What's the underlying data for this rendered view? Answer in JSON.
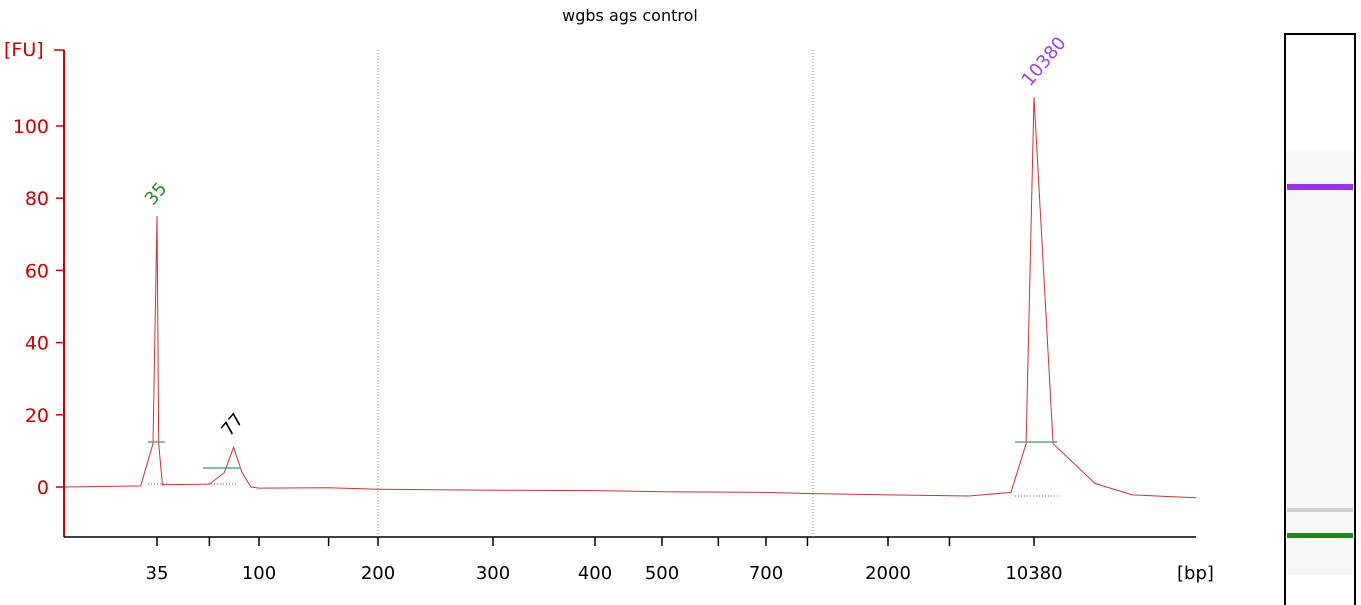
{
  "chart_data": {
    "type": "line",
    "title": "wgbs ags control",
    "ylabel": "[FU]",
    "xlabel": "[bp]",
    "ylim": [
      -14,
      120
    ],
    "y_ticks": [
      0,
      20,
      40,
      60,
      80,
      100
    ],
    "x_axis_scale": "nonlinear (electrophoresis migration)",
    "x_tick_labels": [
      "35",
      "100",
      "200",
      "300",
      "400",
      "500",
      "700",
      "2000",
      "10380"
    ],
    "series": [
      {
        "color": "#cc3333",
        "points": [
          {
            "bp": 25,
            "fu": 0.0
          },
          {
            "bp": 33,
            "fu": 0.3
          },
          {
            "bp": 34.5,
            "fu": 12
          },
          {
            "bp": 35,
            "fu": 75
          },
          {
            "bp": 35.6,
            "fu": 12
          },
          {
            "bp": 37,
            "fu": 0.6
          },
          {
            "bp": 60,
            "fu": 0.8
          },
          {
            "bp": 70,
            "fu": 4
          },
          {
            "bp": 77,
            "fu": 11
          },
          {
            "bp": 84,
            "fu": 4
          },
          {
            "bp": 92,
            "fu": 0
          },
          {
            "bp": 100,
            "fu": -0.3
          },
          {
            "bp": 150,
            "fu": -0.2
          },
          {
            "bp": 200,
            "fu": -0.6
          },
          {
            "bp": 300,
            "fu": -0.9
          },
          {
            "bp": 400,
            "fu": -1.0
          },
          {
            "bp": 500,
            "fu": -1.3
          },
          {
            "bp": 700,
            "fu": -1.5
          },
          {
            "bp": 1000,
            "fu": -1.8
          },
          {
            "bp": 2000,
            "fu": -2.2
          },
          {
            "bp": 5000,
            "fu": -2.5
          },
          {
            "bp": 8000,
            "fu": -1.5
          },
          {
            "bp": 9500,
            "fu": 12
          },
          {
            "bp": 10380,
            "fu": 108
          },
          {
            "bp": 11000,
            "fu": 12
          },
          {
            "bp": 12500,
            "fu": 1
          },
          {
            "bp": 14000,
            "fu": -2.2
          },
          {
            "bp": 17000,
            "fu": -3.0
          }
        ]
      }
    ],
    "peaks": [
      {
        "label": "35",
        "color": "#2a8a2a",
        "fu": 75
      },
      {
        "label": "77",
        "color": "#000000",
        "fu": 11
      },
      {
        "label": "10380",
        "color": "#a040e0",
        "fu": 108
      }
    ],
    "grid": "two dotted vertical lines"
  },
  "gel": {
    "bands": [
      {
        "name": "upper marker",
        "color": "#9b30f0",
        "intensity": 1.0
      },
      {
        "name": "faint band",
        "color": "#cccccc",
        "intensity": 0.3
      },
      {
        "name": "lower marker",
        "color": "#1a8a1a",
        "intensity": 1.0
      }
    ]
  }
}
